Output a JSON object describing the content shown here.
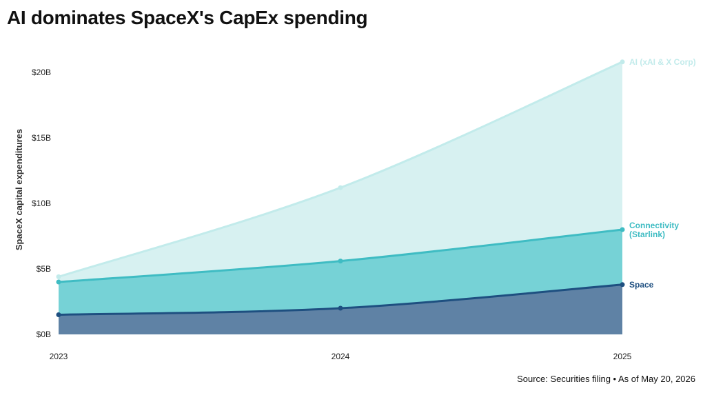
{
  "title": "AI dominates SpaceX's CapEx spending",
  "source": "Source: Securities filing • As of May 20, 2026",
  "chart_data": {
    "type": "area",
    "stacked": true,
    "x": [
      "2023",
      "2024",
      "2025"
    ],
    "ylabel": "SpaceX capital expenditures",
    "yticks": [
      "$0B",
      "$5B",
      "$10B",
      "$15B",
      "$20B"
    ],
    "ylim": [
      0,
      20
    ],
    "grid": false,
    "legend": "direct labels at right end of each series",
    "series": [
      {
        "name": "Space",
        "values": [
          1.5,
          2.0,
          3.8
        ],
        "fill": "#5f82a5",
        "line": "#1e4f80"
      },
      {
        "name": "Connectivity (Starlink)",
        "label_lines": [
          "Connectivity",
          "(Starlink)"
        ],
        "values": [
          2.5,
          3.6,
          4.2
        ],
        "fill": "#76d2d6",
        "line": "#3fbcc3"
      },
      {
        "name": "AI (xAI & X Corp)",
        "values": [
          0.4,
          5.6,
          12.8
        ],
        "fill": "#d7f1f1",
        "line": "#c2ebeb"
      }
    ]
  }
}
